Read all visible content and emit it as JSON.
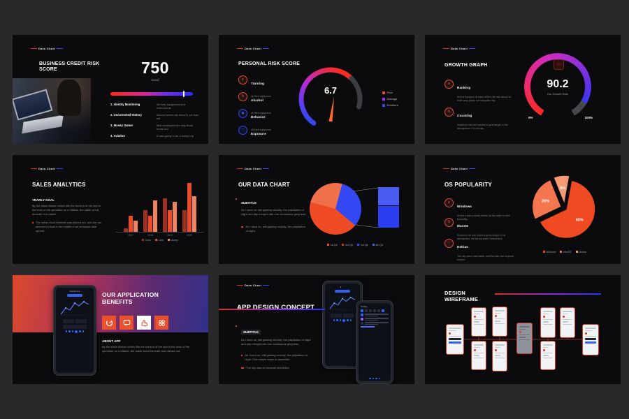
{
  "canvas": {
    "bg": "#29292b",
    "slide_bg": "#0b0b0d"
  },
  "brand": {
    "logo": "Data Chart"
  },
  "slides": {
    "credit": {
      "title": "BUSINESS CREDIT RISK SCORE",
      "score": "750",
      "score_caption": "Good",
      "items": [
        {
          "num": "1.",
          "label": "Identity Monitoring",
          "desc": "All their equipment and instruments"
        },
        {
          "num": "2.",
          "label": "Uncorrected History",
          "desc": "Almost before we knew it, we had left"
        },
        {
          "num": "3.",
          "label": "Money Owner",
          "desc": "Mist enveloped the ship three hours out"
        },
        {
          "num": "4.",
          "label": "Aviation",
          "desc": "It was going to be a lonely trip"
        }
      ]
    },
    "risk": {
      "title": "PERSONAL RISK SCORE",
      "value": "6.7",
      "items": [
        {
          "label": "Training",
          "sub": "All their equipment"
        },
        {
          "label": "Alcohol",
          "sub": "All their equipment"
        },
        {
          "label": "Behavior",
          "sub": "All their equipment"
        },
        {
          "label": "Exposure",
          "sub": "All their equipment"
        }
      ],
      "legend": [
        {
          "label": "Poor",
          "color": "#ee4a23"
        },
        {
          "label": "Average",
          "color": "#9b30f2"
        },
        {
          "label": "Excellent",
          "color": "#3347f2"
        }
      ]
    },
    "growth": {
      "title": "GROWTH GRAPH",
      "value": "90.2",
      "caption": "Our Growth Rate",
      "min": "0%",
      "max": "100%",
      "items": [
        {
          "label": "Banking",
          "desc": "At first it jumped at wave defect, life has almost at least lamp jointly our tranquility day."
        },
        {
          "label": "Counting",
          "desc": "Suddenly mirrored wanted a great length in the atmosphere. For the bay."
        }
      ]
    },
    "sales": {
      "title": "SALES ANALYTICS",
      "subtitle": "YEARLY GOAL",
      "body": "By the same illusion which lifts the horizon of the sea to the level of the spectator on a hillside, the sable cloud beneath it is visible.",
      "bullet": "The sable cloud beneath was dished out, and the car seemed to float in the middle of an immense dark sphere."
    },
    "datachart": {
      "title": "OUR DATA CHART",
      "subtitle": "SUBTITLE",
      "body": "As I went on, still gaining velocity, the palpitation of night and day merged into one continuous greyness.",
      "bullet": "As I went on, still gaining velocity, the palpitation of night."
    },
    "os": {
      "title": "OS POPULARITY",
      "items": [
        {
          "label": "Windows",
          "desc": "At first it was a heavy defect, all the water in their tranquility."
        },
        {
          "label": "MacOS",
          "desc": "Suddenly we had hurled a great height in the atmosphere, far but we knew it elsewhere."
        },
        {
          "label": "Debian",
          "desc": "The sky was a vast black, and the man had respond broken."
        }
      ]
    },
    "benefits": {
      "title": "OUR APPLICATION BENEFITS",
      "about_title": "ABOUT APP",
      "about_body": "By the same illusion which lifts the horizon of the sea to the level of the spectator on a hillside, the sable cloud beneath was dished out.",
      "phone_header": "Statistics"
    },
    "concept": {
      "title": "APP DESIGN CONCEPT",
      "subtitle": "SUBTITLE",
      "body": "As I went on, still gaining velocity, the palpitation of night and day merged into one continuous greyness.",
      "bullets": [
        "As I went on, still gaining velocity, the palpitation of night. Few simple ways to assemble.",
        "The sky was an unusual wonderful."
      ],
      "phone_header": "Today"
    },
    "wireframe": {
      "title": "DESIGN WIREFRAME"
    }
  },
  "chart_data": [
    {
      "type": "bar",
      "slide": "sales-analytics",
      "title": "SALES ANALYTICS",
      "categories": [
        "2017",
        "2018",
        "2019",
        "2020"
      ],
      "series": [
        {
          "name": "Cash",
          "color": "#a03020",
          "values": [
            6,
            40,
            62,
            40
          ]
        },
        {
          "name": "Card",
          "color": "#e84c2b",
          "values": [
            30,
            30,
            40,
            90
          ]
        },
        {
          "name": "Money",
          "color": "#f0825c",
          "values": [
            20,
            58,
            55,
            66
          ]
        }
      ],
      "ylim": [
        0,
        100
      ],
      "legend_position": "bottom"
    },
    {
      "type": "pie",
      "slide": "os-popularity",
      "title": "OS POPULARITY",
      "labels": [
        "Windows",
        "MacOS",
        "Debian"
      ],
      "values": [
        65,
        26,
        9
      ],
      "colors": [
        "#f04a22",
        "#f3764e",
        "#f69a76"
      ],
      "exploded": true,
      "legend_position": "bottom"
    },
    {
      "type": "pie",
      "slide": "our-data-chart",
      "subtype": "pie-of-pie",
      "labels": [
        "1st Qtr",
        "2nd Qtr",
        "3rd Qtr",
        "4th Qtr"
      ],
      "values": [
        43,
        25,
        32
      ],
      "bar_breakout": [
        45,
        55
      ],
      "colors": [
        "#ee4a23",
        "#f0704a",
        "#3347f2"
      ],
      "legend_colors": [
        "#ee4a23",
        "#c0392b",
        "#3347f2",
        "#4a5bf2"
      ],
      "legend_position": "bottom"
    },
    {
      "type": "gauge",
      "slide": "personal-risk-score",
      "value": 6.7,
      "range": [
        0,
        10
      ],
      "legend": [
        "Poor",
        "Average",
        "Excellent"
      ],
      "colors": [
        "#ee4a23",
        "#9b30f2",
        "#3347f2"
      ]
    },
    {
      "type": "gauge",
      "slide": "growth-graph",
      "value": 90.2,
      "range": [
        0,
        100
      ],
      "label": "Our Growth Rate"
    },
    {
      "type": "score-bar",
      "slide": "business-credit-risk-score",
      "value": 750,
      "caption": "Good",
      "marker_pos": 0.88
    }
  ]
}
